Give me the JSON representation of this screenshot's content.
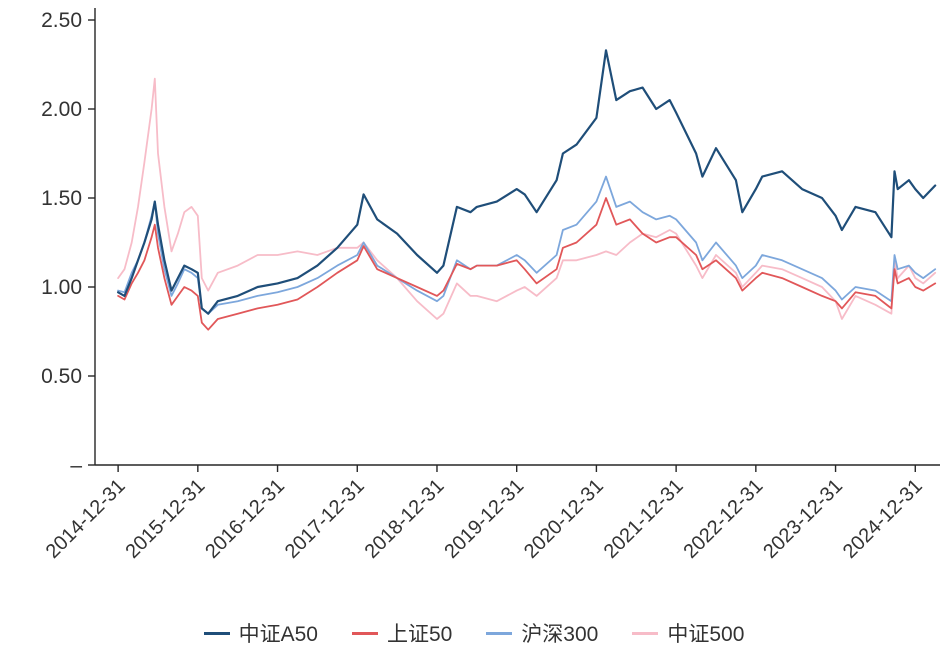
{
  "chart_data": {
    "type": "line",
    "title": "",
    "xlabel": "",
    "ylabel": "",
    "grid": false,
    "legend_position": "bottom",
    "xlim": [
      2014.71,
      2025.26
    ],
    "ylim": [
      0,
      2.5
    ],
    "axis_color": "#262626",
    "text_color": "#333333",
    "y_ticks": [
      {
        "value": 0,
        "label": "–"
      },
      {
        "value": 0.5,
        "label": "0.50"
      },
      {
        "value": 1.0,
        "label": "1.00"
      },
      {
        "value": 1.5,
        "label": "1.50"
      },
      {
        "value": 2.0,
        "label": "2.00"
      },
      {
        "value": 2.5,
        "label": "2.50"
      }
    ],
    "x_ticks": [
      {
        "position": 2015,
        "label": "2014-12-31"
      },
      {
        "position": 2016,
        "label": "2015-12-31"
      },
      {
        "position": 2017,
        "label": "2016-12-31"
      },
      {
        "position": 2018,
        "label": "2017-12-31"
      },
      {
        "position": 2019,
        "label": "2018-12-31"
      },
      {
        "position": 2020,
        "label": "2019-12-31"
      },
      {
        "position": 2021,
        "label": "2020-12-31"
      },
      {
        "position": 2022,
        "label": "2021-12-31"
      },
      {
        "position": 2023,
        "label": "2022-12-31"
      },
      {
        "position": 2024,
        "label": "2023-12-31"
      },
      {
        "position": 2025,
        "label": "2024-12-31"
      }
    ],
    "x": [
      2015.0,
      2015.08,
      2015.17,
      2015.25,
      2015.33,
      2015.42,
      2015.46,
      2015.5,
      2015.58,
      2015.67,
      2015.75,
      2015.83,
      2015.92,
      2016.0,
      2016.05,
      2016.13,
      2016.25,
      2016.5,
      2016.75,
      2017.0,
      2017.25,
      2017.5,
      2017.75,
      2018.0,
      2018.08,
      2018.25,
      2018.5,
      2018.75,
      2019.0,
      2019.08,
      2019.25,
      2019.42,
      2019.5,
      2019.75,
      2020.0,
      2020.1,
      2020.25,
      2020.5,
      2020.58,
      2020.75,
      2021.0,
      2021.12,
      2021.25,
      2021.42,
      2021.58,
      2021.75,
      2021.92,
      2022.0,
      2022.25,
      2022.33,
      2022.5,
      2022.75,
      2022.83,
      2023.0,
      2023.08,
      2023.33,
      2023.58,
      2023.83,
      2024.0,
      2024.08,
      2024.25,
      2024.5,
      2024.7,
      2024.74,
      2024.78,
      2024.92,
      2025.0,
      2025.1,
      2025.25
    ],
    "series": [
      {
        "name": "中证A50",
        "color": "#1f4e79",
        "width": 2.2,
        "values": [
          0.97,
          0.95,
          1.05,
          1.15,
          1.25,
          1.38,
          1.48,
          1.35,
          1.15,
          0.98,
          1.05,
          1.12,
          1.1,
          1.08,
          0.88,
          0.85,
          0.92,
          0.95,
          1.0,
          1.02,
          1.05,
          1.12,
          1.22,
          1.35,
          1.52,
          1.38,
          1.3,
          1.18,
          1.08,
          1.12,
          1.45,
          1.42,
          1.45,
          1.48,
          1.55,
          1.52,
          1.42,
          1.6,
          1.75,
          1.8,
          1.95,
          2.33,
          2.05,
          2.1,
          2.12,
          2.0,
          2.05,
          1.98,
          1.75,
          1.62,
          1.78,
          1.6,
          1.42,
          1.55,
          1.62,
          1.65,
          1.55,
          1.5,
          1.4,
          1.32,
          1.45,
          1.42,
          1.28,
          1.65,
          1.55,
          1.6,
          1.55,
          1.5,
          1.57
        ]
      },
      {
        "name": "上证50",
        "color": "#e15759",
        "width": 1.8,
        "values": [
          0.95,
          0.93,
          1.02,
          1.08,
          1.15,
          1.28,
          1.35,
          1.22,
          1.05,
          0.9,
          0.95,
          1.0,
          0.98,
          0.95,
          0.8,
          0.76,
          0.82,
          0.85,
          0.88,
          0.9,
          0.93,
          1.0,
          1.08,
          1.15,
          1.23,
          1.1,
          1.05,
          1.0,
          0.95,
          0.98,
          1.13,
          1.1,
          1.12,
          1.12,
          1.15,
          1.1,
          1.02,
          1.1,
          1.22,
          1.25,
          1.35,
          1.5,
          1.35,
          1.38,
          1.3,
          1.25,
          1.28,
          1.28,
          1.18,
          1.1,
          1.15,
          1.05,
          0.98,
          1.05,
          1.08,
          1.05,
          1.0,
          0.95,
          0.92,
          0.88,
          0.97,
          0.95,
          0.88,
          1.1,
          1.02,
          1.05,
          1.0,
          0.98,
          1.02
        ]
      },
      {
        "name": "沪深300",
        "color": "#7da7dc",
        "width": 1.8,
        "values": [
          0.98,
          0.97,
          1.08,
          1.15,
          1.25,
          1.4,
          1.48,
          1.3,
          1.1,
          0.95,
          1.02,
          1.1,
          1.08,
          1.05,
          0.88,
          0.85,
          0.9,
          0.92,
          0.95,
          0.97,
          1.0,
          1.05,
          1.12,
          1.18,
          1.25,
          1.12,
          1.05,
          0.98,
          0.92,
          0.95,
          1.15,
          1.1,
          1.12,
          1.12,
          1.18,
          1.15,
          1.08,
          1.18,
          1.32,
          1.35,
          1.48,
          1.62,
          1.45,
          1.48,
          1.42,
          1.38,
          1.4,
          1.38,
          1.25,
          1.15,
          1.25,
          1.12,
          1.05,
          1.12,
          1.18,
          1.15,
          1.1,
          1.05,
          0.98,
          0.93,
          1.0,
          0.98,
          0.92,
          1.18,
          1.1,
          1.12,
          1.08,
          1.05,
          1.1
        ]
      },
      {
        "name": "中证500",
        "color": "#f7bcc8",
        "width": 1.8,
        "values": [
          1.05,
          1.1,
          1.25,
          1.45,
          1.7,
          2.0,
          2.17,
          1.75,
          1.45,
          1.2,
          1.3,
          1.42,
          1.45,
          1.4,
          1.05,
          0.98,
          1.08,
          1.12,
          1.18,
          1.18,
          1.2,
          1.18,
          1.22,
          1.22,
          1.25,
          1.15,
          1.05,
          0.92,
          0.82,
          0.85,
          1.02,
          0.95,
          0.95,
          0.92,
          0.98,
          1.0,
          0.95,
          1.05,
          1.15,
          1.15,
          1.18,
          1.2,
          1.18,
          1.25,
          1.3,
          1.28,
          1.32,
          1.3,
          1.12,
          1.05,
          1.18,
          1.08,
          1.0,
          1.08,
          1.12,
          1.1,
          1.05,
          1.0,
          0.92,
          0.82,
          0.95,
          0.9,
          0.85,
          1.15,
          1.05,
          1.12,
          1.05,
          1.02,
          1.08
        ]
      }
    ]
  }
}
